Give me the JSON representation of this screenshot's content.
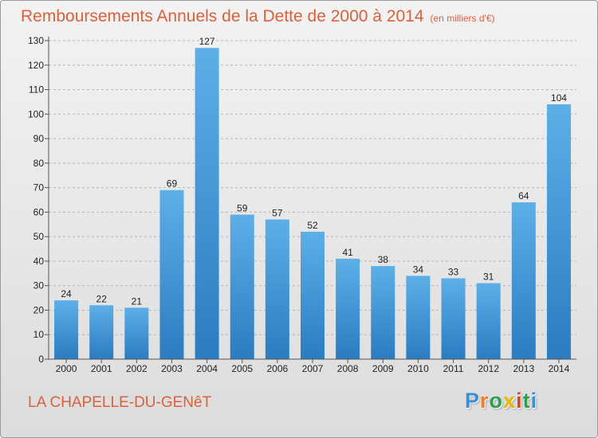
{
  "header": {
    "title": "Remboursements Annuels de la Dette de 2000 à 2014",
    "unit": "(en milliers d'€)"
  },
  "footer": {
    "town": "LA CHAPELLE-DU-GENêT",
    "logo": [
      "P",
      "r",
      "o",
      "x",
      "i",
      "t",
      "i"
    ]
  },
  "colors": {
    "title": "#d9613c",
    "bar_light": "#5eaee8",
    "bar_dark": "#2b7cc0"
  },
  "chart_data": {
    "type": "bar",
    "title": "Remboursements Annuels de la Dette de 2000 à 2014",
    "xlabel": "",
    "ylabel": "",
    "categories": [
      "2000",
      "2001",
      "2002",
      "2003",
      "2004",
      "2005",
      "2006",
      "2007",
      "2008",
      "2009",
      "2010",
      "2011",
      "2012",
      "2013",
      "2014"
    ],
    "values": [
      24,
      22,
      21,
      69,
      127,
      59,
      57,
      52,
      41,
      38,
      34,
      33,
      31,
      64,
      104
    ],
    "ylim": [
      0,
      130
    ],
    "yticks": [
      0,
      10,
      20,
      30,
      40,
      50,
      60,
      70,
      80,
      90,
      100,
      110,
      120,
      130
    ],
    "grid": "horizontal dashed",
    "legend": "none"
  }
}
